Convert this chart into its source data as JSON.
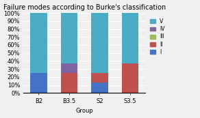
{
  "categories": [
    "B2",
    "B3.5",
    "S2",
    "S3.5"
  ],
  "series": {
    "I": [
      25,
      0,
      13,
      0
    ],
    "II": [
      0,
      25,
      12,
      37
    ],
    "III": [
      0,
      0,
      0,
      0
    ],
    "IV": [
      0,
      12,
      0,
      0
    ],
    "V": [
      75,
      63,
      75,
      63
    ]
  },
  "colors": {
    "I": "#4472c4",
    "II": "#c0504d",
    "III": "#9bbb59",
    "IV": "#8064a2",
    "V": "#4bacc6"
  },
  "title": "Failure modes according to Burke's classification",
  "xlabel": "Group",
  "ylabel": "",
  "ylim": [
    0,
    100
  ],
  "yticks": [
    0,
    10,
    20,
    30,
    40,
    50,
    60,
    70,
    80,
    90,
    100
  ],
  "ytick_labels": [
    "0%",
    "10%",
    "20%",
    "30%",
    "40%",
    "50%",
    "60%",
    "70%",
    "80%",
    "90%",
    "100%"
  ],
  "background_color": "#f0f0f0",
  "title_fontsize": 7,
  "axis_fontsize": 6,
  "legend_fontsize": 5.5,
  "bar_width": 0.55
}
